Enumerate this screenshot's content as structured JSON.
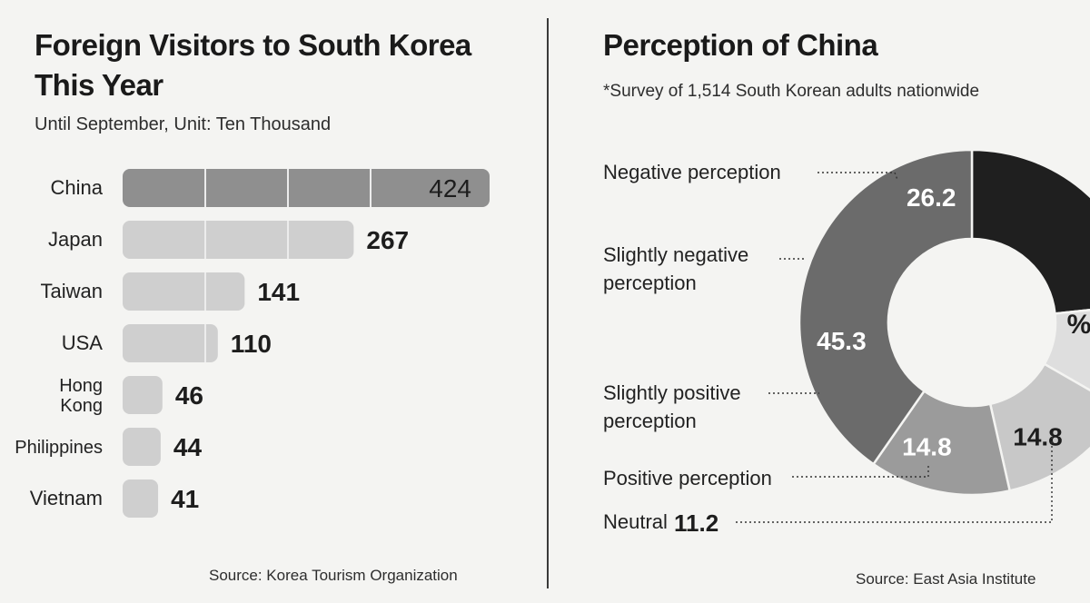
{
  "left": {
    "title_line1": "Foreign Visitors to South Korea",
    "title_line2": "This Year",
    "subtitle": "Until September, Unit: Ten Thousand",
    "source": "Source:  Korea Tourism Organization"
  },
  "right": {
    "title": "Perception of China",
    "subtitle": "*Survey of 1,514 South Korean adults nationwide",
    "source": "Source: East Asia Institute",
    "unit_label": "%"
  },
  "colors": {
    "bar_highlight": "#8f8f8f",
    "bar_light": "#cfcfcf",
    "bar_separator": "#ececec",
    "negative": "#1f1f1f",
    "slightly_negative": "#6b6b6b",
    "slightly_positive": "#9b9b9b",
    "positive": "#c8c8c8",
    "neutral": "#dedede"
  },
  "chart_data": [
    {
      "type": "bar",
      "orientation": "horizontal",
      "title": "Foreign Visitors to South Korea This Year",
      "subtitle": "Until September, Unit: Ten Thousand",
      "categories": [
        "China",
        "Japan",
        "Taiwan",
        "USA",
        "Hong Kong",
        "Philippines",
        "Vietnam"
      ],
      "category_lines": [
        [
          "China"
        ],
        [
          "Japan"
        ],
        [
          "Taiwan"
        ],
        [
          "USA"
        ],
        [
          "Hong",
          "Kong"
        ],
        [
          "Philippines"
        ],
        [
          "Vietnam"
        ]
      ],
      "values": [
        424,
        267,
        141,
        110,
        46,
        44,
        41
      ],
      "data_labels": [
        "424",
        "267",
        "141",
        "110",
        "46",
        "44",
        "41"
      ],
      "grid": false
    },
    {
      "type": "pie",
      "variant": "donut",
      "title": "Perception of China",
      "subtitle": "*Survey of 1,514 South Korean adults nationwide",
      "unit": "%",
      "slices": [
        {
          "label": "Negative perception",
          "label_lines": [
            "Negative perception"
          ],
          "value": 26.2,
          "value_label": "26.2",
          "color_key": "negative"
        },
        {
          "label": "Neutral",
          "label_lines": [
            "Neutral"
          ],
          "value": 11.2,
          "value_label": "11.2",
          "color_key": "neutral"
        },
        {
          "label": "Positive perception",
          "label_lines": [
            "Positive perception"
          ],
          "value": 14.8,
          "value_label": "14.8",
          "color_key": "positive"
        },
        {
          "label": "Slightly positive perception",
          "label_lines": [
            "Slightly positive",
            "perception"
          ],
          "value": 14.8,
          "value_label": "14.8",
          "color_key": "slightly_positive"
        },
        {
          "label": "Slightly negative perception",
          "label_lines": [
            "Slightly negative",
            "perception"
          ],
          "value": 45.3,
          "value_label": "45.3",
          "color_key": "slightly_negative"
        }
      ]
    }
  ]
}
